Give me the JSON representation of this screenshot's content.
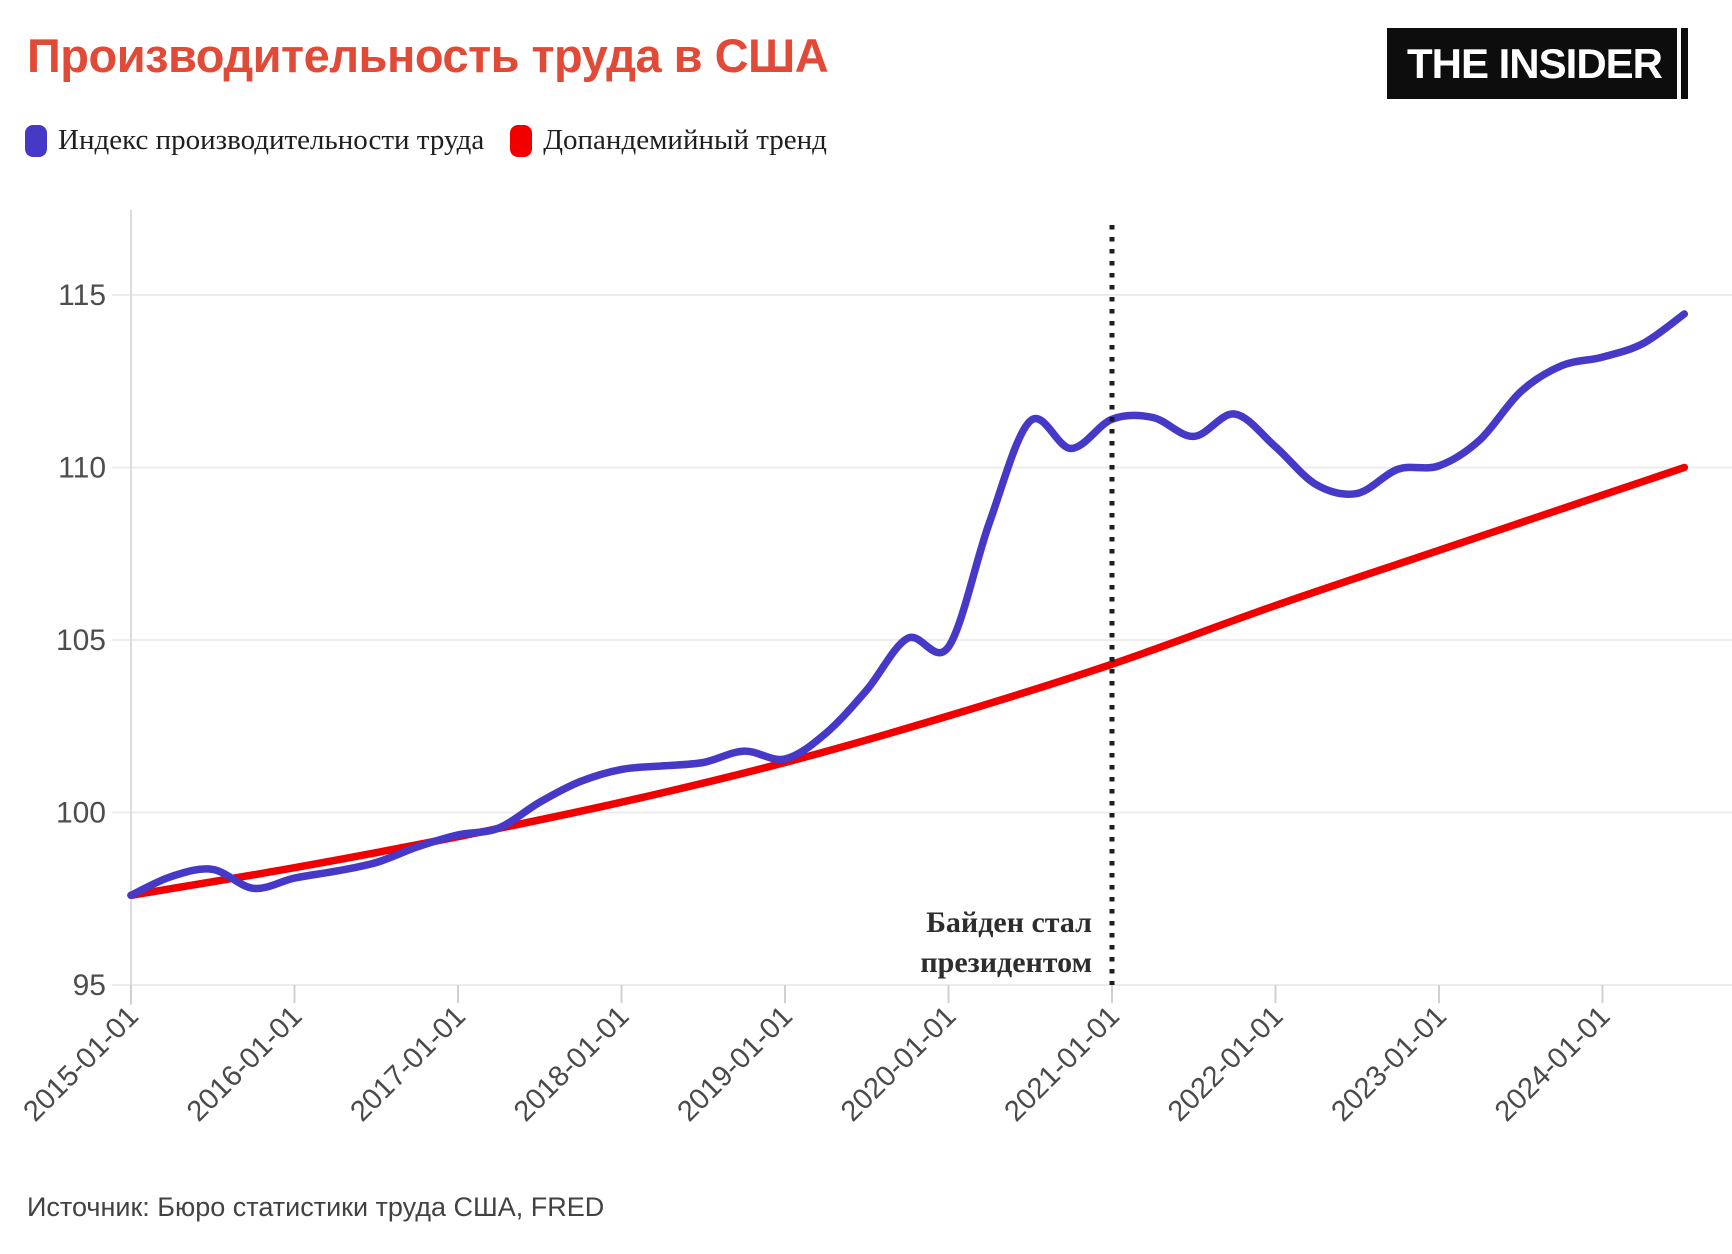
{
  "header": {
    "title": "Производительность труда в США",
    "logo_text": "THE INSIDER"
  },
  "footer": {
    "source": "Источник: Бюро статистики труда США, FRED"
  },
  "chart_data": {
    "type": "line",
    "title": "Производительность труда в США",
    "xlabel": "",
    "ylabel": "",
    "grid": "horizontal",
    "legend_position": "top-left",
    "xlim": [
      2015.0,
      2024.8
    ],
    "ylim": [
      95,
      117.6
    ],
    "y_ticks": [
      95,
      100,
      105,
      110,
      115
    ],
    "x_tick_years": [
      2015,
      2016,
      2017,
      2018,
      2019,
      2020,
      2021,
      2022,
      2023,
      2024
    ],
    "x_tick_labels": [
      "2015-01-01",
      "2016-01-01",
      "2017-01-01",
      "2018-01-01",
      "2019-01-01",
      "2020-01-01",
      "2021-01-01",
      "2022-01-01",
      "2023-01-01",
      "2024-01-01"
    ],
    "vline": {
      "x": 2021.0,
      "style": "dotted",
      "color": "#1c1c1c"
    },
    "annotation": {
      "text_lines": [
        "Байден стал",
        "президентом"
      ],
      "x": 2021.0,
      "align": "right-of-line-left"
    },
    "series": [
      {
        "name": "Индекс производительности труда",
        "color": "#4639c8",
        "x": [
          2015.0,
          2015.25,
          2015.5,
          2015.75,
          2016.0,
          2016.25,
          2016.5,
          2016.75,
          2017.0,
          2017.25,
          2017.5,
          2017.75,
          2018.0,
          2018.25,
          2018.5,
          2018.75,
          2019.0,
          2019.25,
          2019.5,
          2019.75,
          2020.0,
          2020.25,
          2020.5,
          2020.75,
          2021.0,
          2021.25,
          2021.5,
          2021.75,
          2022.0,
          2022.25,
          2022.5,
          2022.75,
          2023.0,
          2023.25,
          2023.5,
          2023.75,
          2024.0,
          2024.25,
          2024.5
        ],
        "y": [
          97.6,
          98.15,
          98.35,
          97.8,
          98.1,
          98.3,
          98.55,
          99.0,
          99.35,
          99.55,
          100.3,
          100.9,
          101.25,
          101.35,
          101.45,
          101.78,
          101.55,
          102.3,
          103.55,
          105.05,
          104.8,
          108.4,
          111.35,
          110.55,
          111.4,
          111.45,
          110.9,
          111.55,
          110.6,
          109.5,
          109.25,
          109.95,
          110.05,
          110.8,
          112.2,
          112.95,
          113.2,
          113.6,
          114.45
        ]
      },
      {
        "name": "Допандемийный тренд",
        "color": "#f20000",
        "x": [
          2015.0,
          2016.0,
          2017.0,
          2018.0,
          2019.0,
          2020.0,
          2021.0,
          2022.0,
          2023.0,
          2024.0,
          2024.5
        ],
        "y": [
          97.6,
          98.4,
          99.3,
          100.3,
          101.45,
          102.8,
          104.3,
          106.0,
          107.6,
          109.2,
          110.0
        ]
      }
    ]
  }
}
